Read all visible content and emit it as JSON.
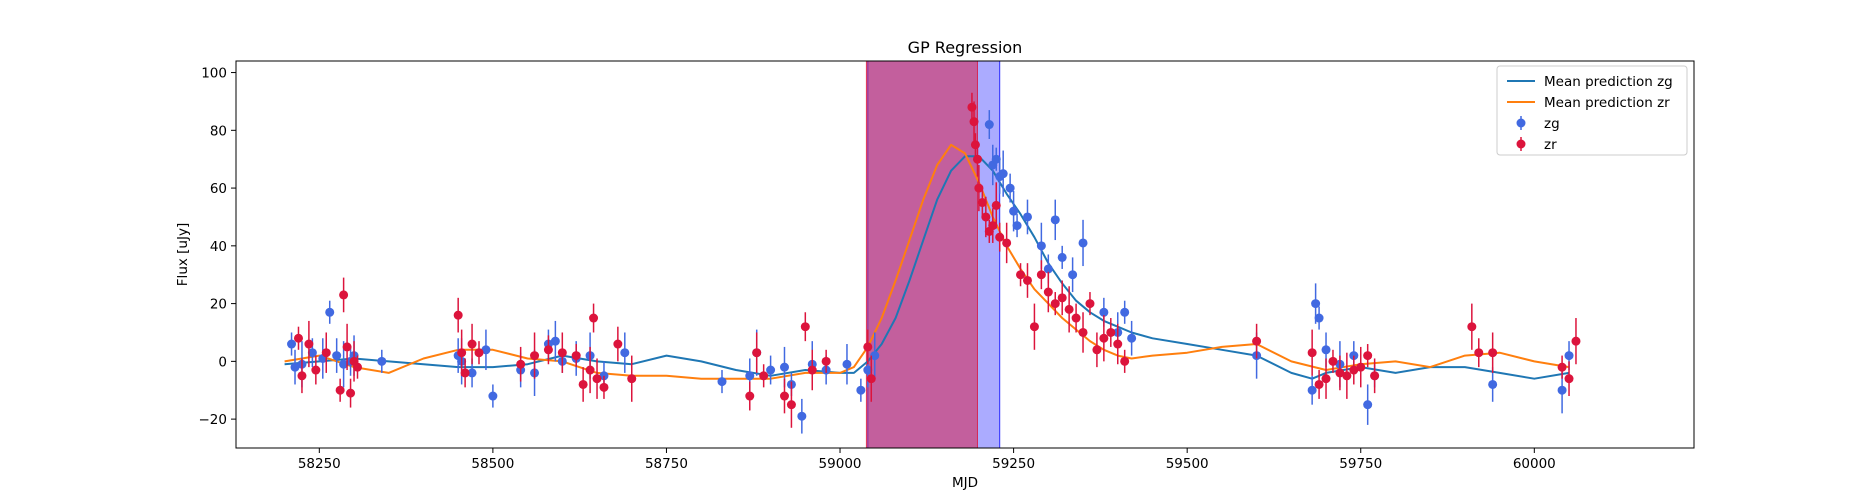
{
  "chart_data": {
    "type": "scatter",
    "title": "GP Regression",
    "xlabel": "MJD",
    "ylabel": "Flux [uJy]",
    "xlim": [
      58130,
      60230
    ],
    "ylim": [
      -30,
      104
    ],
    "xticks": [
      58250,
      58500,
      58750,
      59000,
      59250,
      59500,
      59750,
      60000
    ],
    "yticks": [
      -20,
      0,
      20,
      40,
      60,
      80,
      100
    ],
    "grid": false,
    "legend_position": "top-right",
    "spans": [
      {
        "x0": 59040,
        "x1": 59230,
        "color": "#0000ff",
        "opacity": 0.33
      },
      {
        "x0": 59038,
        "x1": 59198,
        "color": "#dc143c",
        "opacity": 0.5
      }
    ],
    "series": [
      {
        "name": "Mean prediction zg",
        "kind": "line",
        "color": "#1f77b4",
        "x": [
          58200,
          58250,
          58300,
          58350,
          58400,
          58450,
          58500,
          58550,
          58600,
          58650,
          58700,
          58750,
          58800,
          58850,
          58900,
          58950,
          59000,
          59020,
          59040,
          59060,
          59080,
          59100,
          59120,
          59140,
          59160,
          59180,
          59200,
          59220,
          59240,
          59260,
          59280,
          59300,
          59320,
          59340,
          59360,
          59380,
          59400,
          59420,
          59450,
          59500,
          59550,
          59600,
          59650,
          59680,
          59700,
          59750,
          59800,
          59850,
          59900,
          59950,
          60000,
          60050
        ],
        "y": [
          -1,
          0,
          1,
          0,
          -1,
          -2,
          -2,
          -1,
          2,
          0,
          -1,
          2,
          0,
          -3,
          -5,
          -3,
          -4,
          -4,
          0,
          6,
          15,
          28,
          42,
          56,
          66,
          71,
          71,
          66,
          58,
          51,
          43,
          34,
          27,
          21,
          17,
          14,
          12,
          10,
          8,
          6,
          4,
          2,
          -4,
          -6,
          -4,
          -2,
          -4,
          -2,
          -2,
          -4,
          -6,
          -4
        ]
      },
      {
        "name": "Mean prediction zr",
        "kind": "line",
        "color": "#ff7f0e",
        "x": [
          58200,
          58250,
          58300,
          58350,
          58400,
          58450,
          58500,
          58550,
          58600,
          58650,
          58700,
          58750,
          58800,
          58850,
          58900,
          58950,
          59000,
          59020,
          59040,
          59060,
          59080,
          59100,
          59120,
          59140,
          59160,
          59180,
          59200,
          59220,
          59240,
          59260,
          59280,
          59300,
          59320,
          59340,
          59360,
          59380,
          59400,
          59420,
          59450,
          59500,
          59550,
          59600,
          59650,
          59700,
          59750,
          59800,
          59850,
          59900,
          59950,
          60000,
          60050
        ],
        "y": [
          0,
          2,
          -2,
          -4,
          1,
          4,
          4,
          1,
          0,
          -4,
          -5,
          -5,
          -6,
          -6,
          -6,
          -4,
          -4,
          -2,
          5,
          15,
          28,
          42,
          56,
          68,
          75,
          72,
          62,
          50,
          40,
          32,
          25,
          20,
          15,
          11,
          7,
          4,
          2,
          1,
          2,
          3,
          5,
          6,
          0,
          -3,
          -1,
          0,
          -2,
          2,
          3,
          0,
          -2
        ]
      },
      {
        "name": "zg",
        "kind": "scatter",
        "color": "#4169e1",
        "x": [
          58210,
          58215,
          58225,
          58240,
          58255,
          58265,
          58275,
          58285,
          58295,
          58300,
          58340,
          58450,
          58455,
          58470,
          58490,
          58500,
          58540,
          58560,
          58580,
          58590,
          58600,
          58620,
          58640,
          58660,
          58690,
          58830,
          58870,
          58880,
          58900,
          58920,
          58930,
          58945,
          58960,
          58980,
          59010,
          59030,
          59040,
          59050,
          59215,
          59220,
          59225,
          59230,
          59235,
          59245,
          59250,
          59255,
          59270,
          59290,
          59300,
          59310,
          59320,
          59335,
          59350,
          59380,
          59400,
          59410,
          59420,
          59600,
          59680,
          59685,
          59690,
          59700,
          59720,
          59740,
          59760,
          59770,
          59940,
          60040,
          60050
        ],
        "y": [
          6,
          -2,
          -1,
          3,
          1,
          17,
          2,
          -1,
          0,
          2,
          0,
          2,
          0,
          -4,
          4,
          -12,
          -3,
          -4,
          6,
          7,
          0,
          1,
          2,
          -5,
          3,
          -7,
          -5,
          3,
          -3,
          -2,
          -8,
          -19,
          -1,
          -3,
          -1,
          -10,
          -3,
          2,
          82,
          68,
          70,
          64,
          65,
          60,
          52,
          47,
          50,
          40,
          32,
          49,
          36,
          30,
          41,
          17,
          10,
          17,
          8,
          2,
          -10,
          20,
          15,
          4,
          -1,
          2,
          -15,
          -5,
          -8,
          -10,
          2
        ]
      },
      {
        "name": "zr",
        "kind": "scatter",
        "color": "#dc143c",
        "x": [
          58220,
          58225,
          58235,
          58245,
          58260,
          58280,
          58285,
          58290,
          58295,
          58300,
          58305,
          58450,
          58455,
          58460,
          58470,
          58480,
          58540,
          58560,
          58580,
          58600,
          58620,
          58630,
          58640,
          58645,
          58650,
          58660,
          58680,
          58700,
          58870,
          58880,
          58890,
          58920,
          58930,
          58950,
          58960,
          58980,
          59040,
          59045,
          59190,
          59193,
          59195,
          59198,
          59200,
          59205,
          59210,
          59215,
          59220,
          59225,
          59230,
          59240,
          59260,
          59270,
          59280,
          59290,
          59300,
          59310,
          59320,
          59330,
          59340,
          59350,
          59360,
          59370,
          59380,
          59390,
          59400,
          59410,
          59600,
          59680,
          59690,
          59700,
          59710,
          59720,
          59730,
          59740,
          59750,
          59760,
          59770,
          59910,
          59920,
          59940,
          60040,
          60050,
          60060
        ],
        "y": [
          8,
          -5,
          6,
          -3,
          3,
          -10,
          23,
          5,
          -11,
          0,
          -2,
          16,
          3,
          -4,
          6,
          3,
          -1,
          2,
          4,
          3,
          2,
          -8,
          -3,
          15,
          -6,
          -9,
          6,
          -6,
          -12,
          3,
          -5,
          -12,
          -15,
          12,
          -3,
          0,
          5,
          -6,
          88,
          83,
          75,
          70,
          60,
          55,
          50,
          45,
          47,
          54,
          43,
          41,
          30,
          28,
          12,
          30,
          24,
          20,
          22,
          18,
          15,
          10,
          20,
          4,
          8,
          10,
          6,
          0,
          7,
          3,
          -8,
          -6,
          0,
          -4,
          -5,
          -3,
          -2,
          2,
          -5,
          12,
          3,
          3,
          -2,
          -6,
          7
        ]
      }
    ]
  }
}
